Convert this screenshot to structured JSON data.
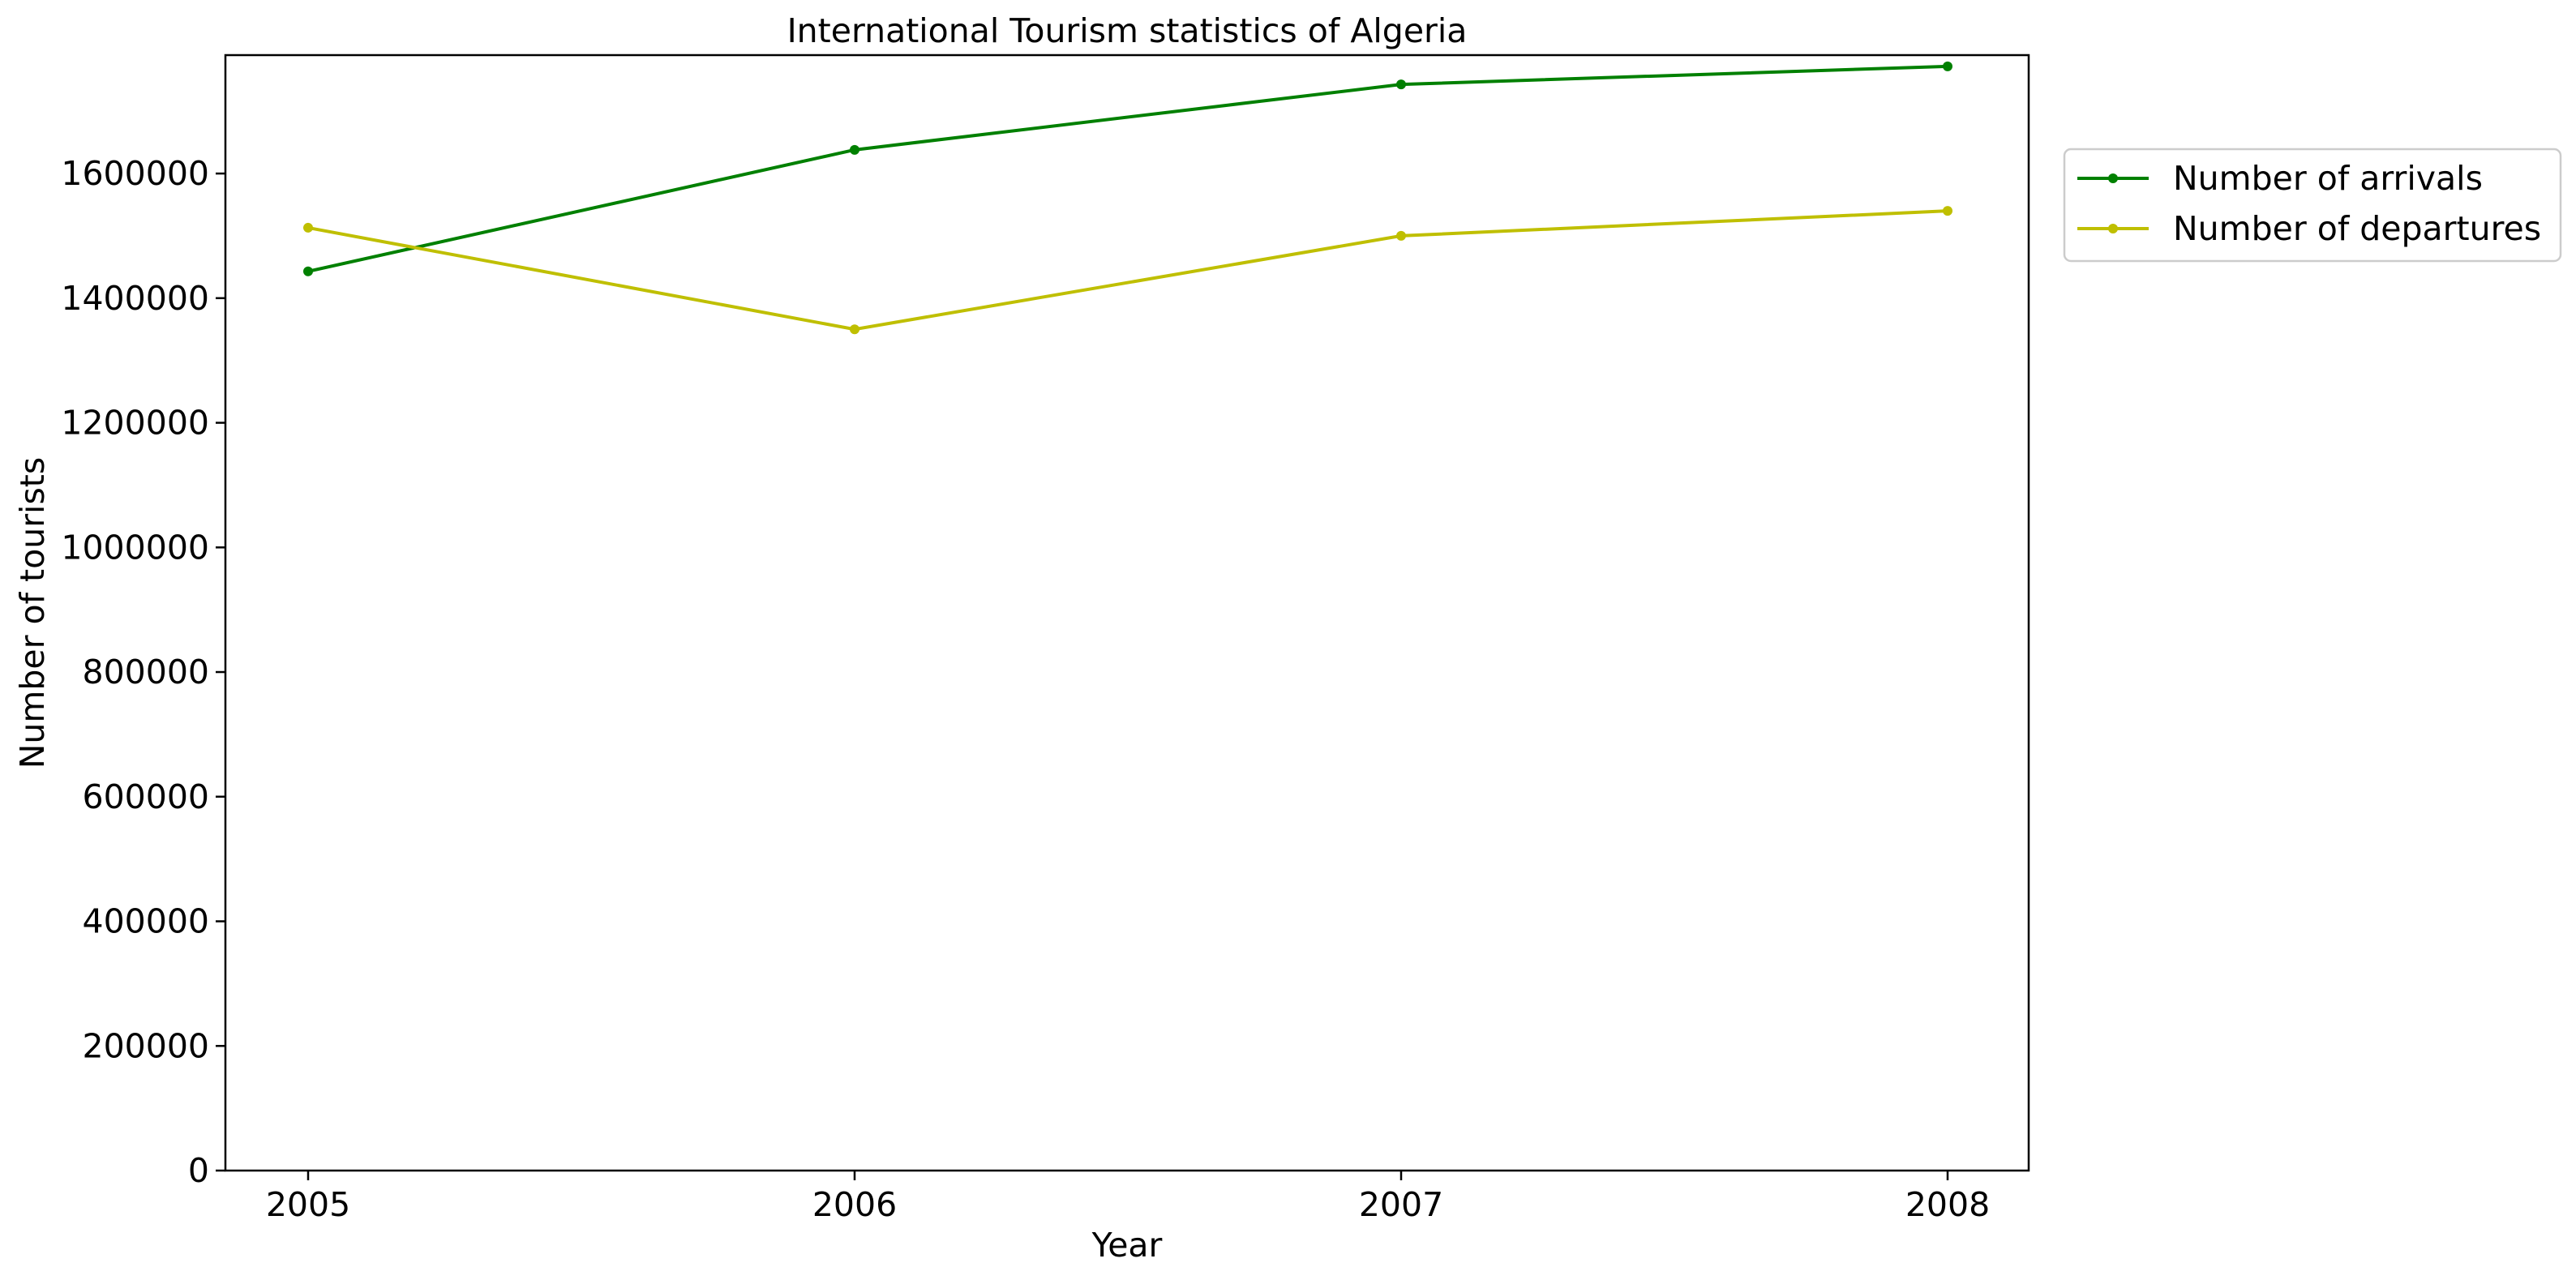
{
  "chart_data": {
    "type": "line",
    "title": "International Tourism statistics of Algeria",
    "xlabel": "Year",
    "ylabel": "Number of tourists",
    "x": [
      "2005",
      "2006",
      "2007",
      "2008"
    ],
    "ylim": [
      0,
      1790000
    ],
    "yticks": [
      "0",
      "200000",
      "400000",
      "600000",
      "800000",
      "1000000",
      "1200000",
      "1400000",
      "1600000"
    ],
    "grid": false,
    "legend_position": "outside-right-top",
    "series": [
      {
        "name": "Number of arrivals",
        "color": "#008000",
        "values": [
          1443000,
          1638000,
          1743000,
          1772000
        ]
      },
      {
        "name": "Number of departures",
        "color": "#BFBF00",
        "values": [
          1513000,
          1350000,
          1500000,
          1540000
        ]
      }
    ]
  }
}
